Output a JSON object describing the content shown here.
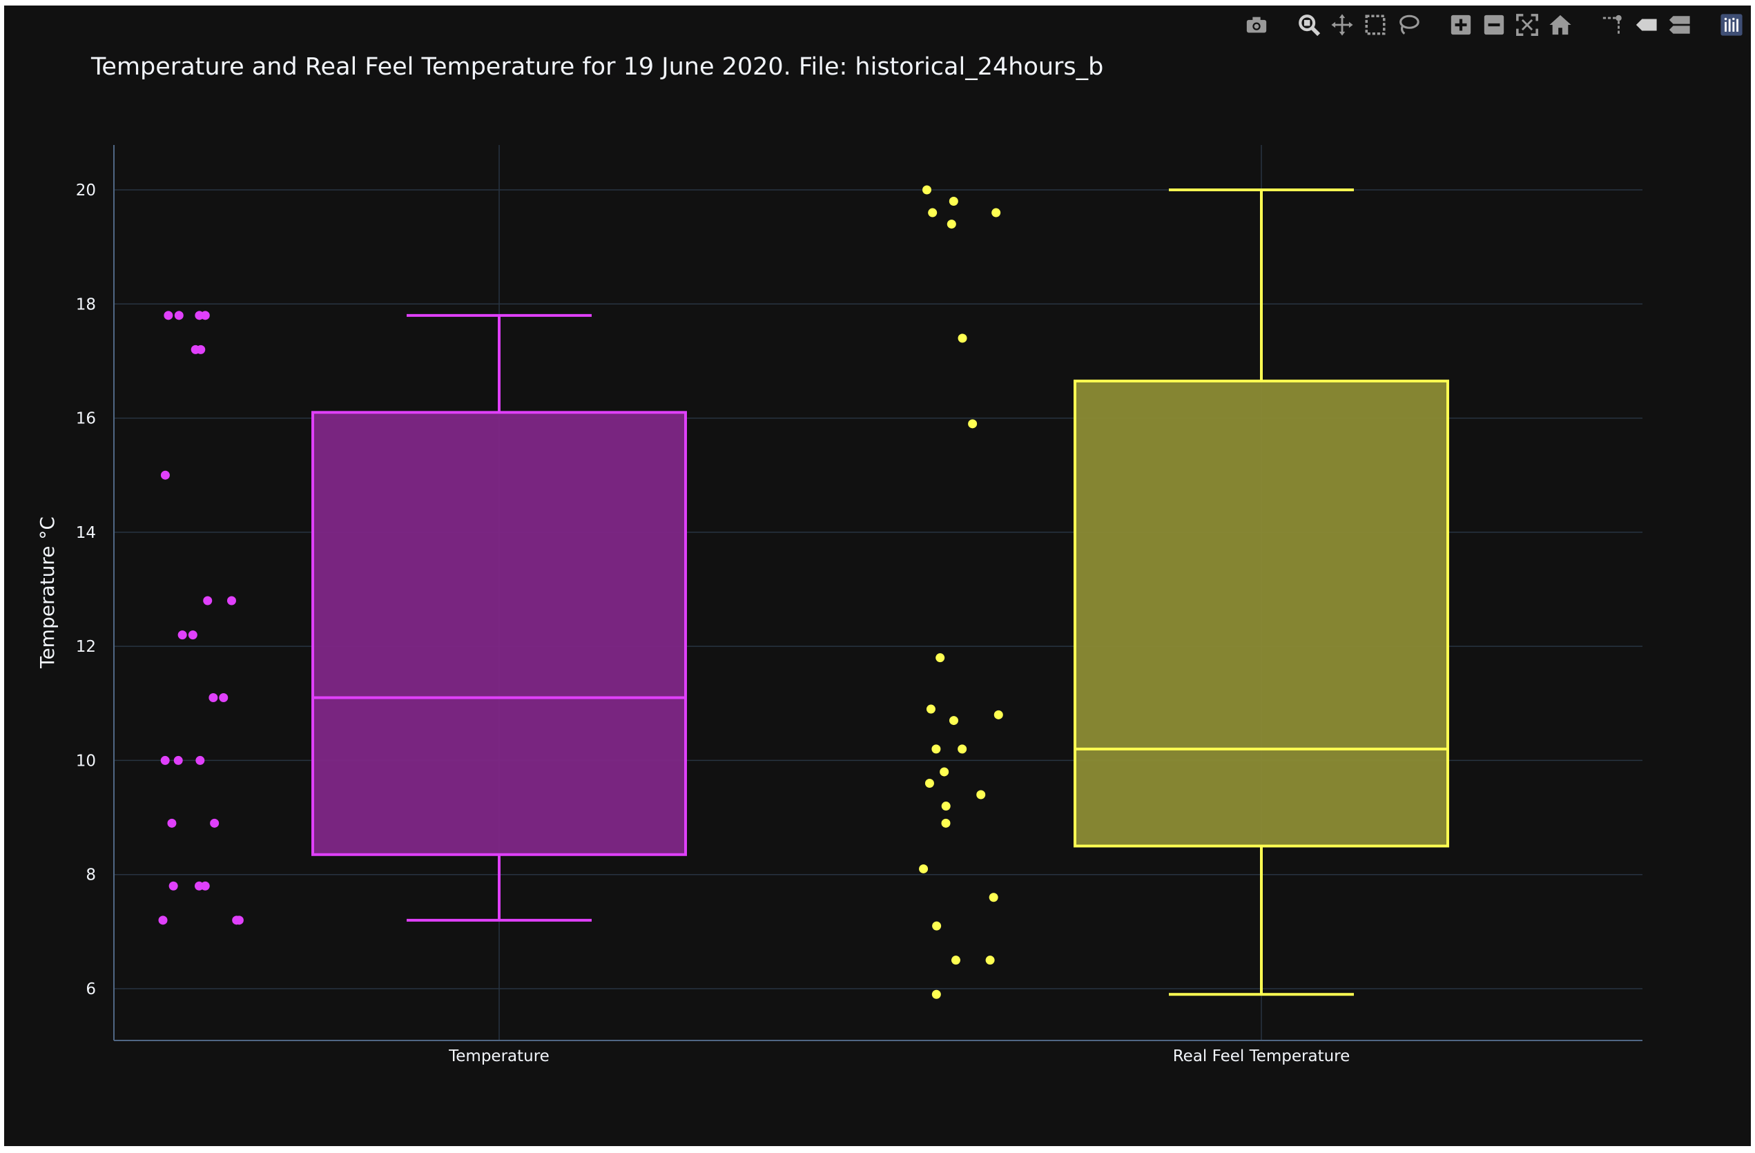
{
  "chart_data": {
    "type": "box",
    "title": "Temperature and Real Feel Temperature for 19 June 2020. File: historical_24hours_b",
    "xlabel": "",
    "ylabel": "Temperature °C",
    "ylim": [
      5.1,
      20.8
    ],
    "yticks": [
      "6",
      "8",
      "10",
      "12",
      "14",
      "16",
      "18",
      "20"
    ],
    "grid": true,
    "categories": [
      "Temperature",
      "Real Feel Temperature"
    ],
    "series": [
      {
        "name": "Temperature",
        "color": "#e040fb",
        "fill": "#7e2785",
        "lowerfence": 7.2,
        "q1": 8.35,
        "median": 11.1,
        "q3": 16.1,
        "upperfence": 17.8,
        "points": [
          17.8,
          17.8,
          17.8,
          17.8,
          17.2,
          17.2,
          15.0,
          12.8,
          12.8,
          12.2,
          12.2,
          11.1,
          11.1,
          10.0,
          10.0,
          10.0,
          8.9,
          8.9,
          7.8,
          7.8,
          7.8,
          7.2,
          7.2,
          7.2
        ]
      },
      {
        "name": "Real Feel Temperature",
        "color": "#ffff52",
        "fill": "#8a8a34",
        "lowerfence": 5.9,
        "q1": 8.5,
        "median": 10.2,
        "q3": 16.65,
        "upperfence": 20.0,
        "points": [
          20.0,
          19.8,
          19.6,
          19.6,
          19.4,
          17.4,
          15.9,
          11.8,
          10.9,
          10.8,
          10.7,
          10.2,
          10.2,
          9.8,
          9.6,
          9.4,
          9.2,
          8.9,
          8.1,
          7.6,
          7.1,
          6.5,
          6.5,
          5.9
        ]
      }
    ]
  },
  "modebar": {
    "icons": [
      "camera-icon",
      "zoom-icon",
      "pan-icon",
      "box-select-icon",
      "lasso-select-icon",
      "zoom-in-icon",
      "zoom-out-icon",
      "autoscale-icon",
      "reset-axes-icon",
      "spike-lines-icon",
      "hover-closest-icon",
      "hover-compare-icon",
      "plotly-logo-icon"
    ]
  }
}
